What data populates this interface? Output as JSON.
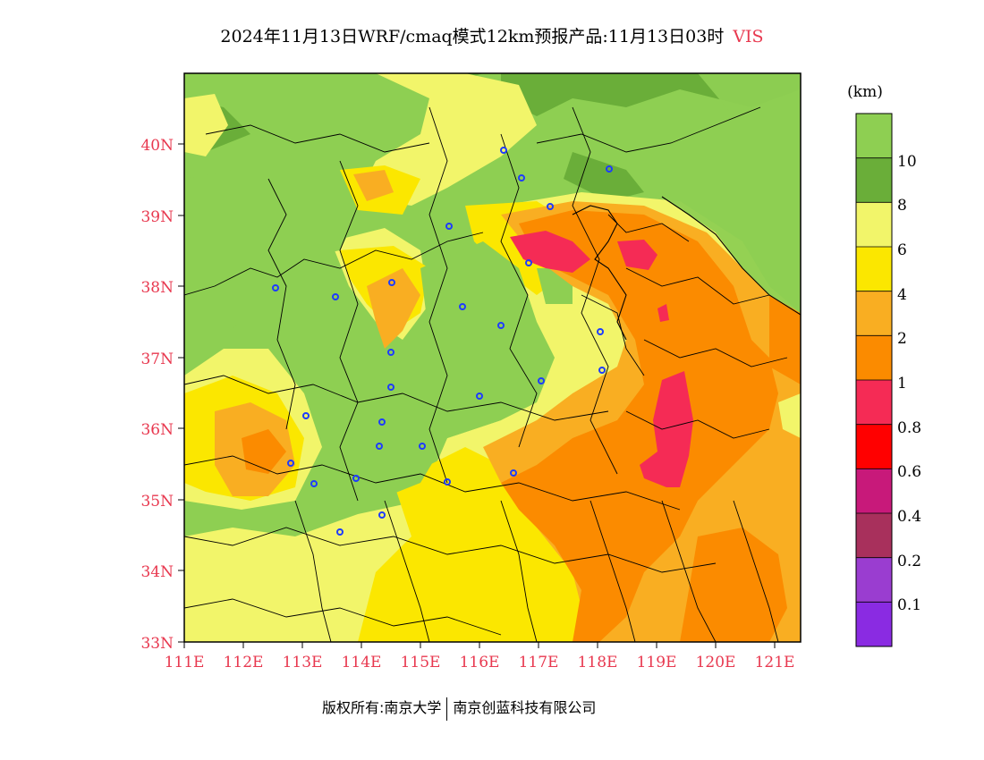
{
  "title": {
    "main": "2024年11月13日WRF/cmaq模式12km预报产品:11月13日03时",
    "variable": "VIS"
  },
  "map": {
    "lat_labels": [
      "33N",
      "34N",
      "35N",
      "36N",
      "37N",
      "38N",
      "39N",
      "40N"
    ],
    "lon_labels": [
      "111E",
      "112E",
      "113E",
      "114E",
      "115E",
      "116E",
      "117E",
      "118E",
      "119E",
      "120E",
      "121E"
    ],
    "extent": {
      "lon": [
        111,
        121.5
      ],
      "lat": [
        33,
        41
      ]
    },
    "fill_colors": {
      "gt10": "#8ecf52",
      "8_10": "#6aae39",
      "6_8": "#f2f56a",
      "4_6": "#fbe700",
      "2_4": "#f9ae22",
      "1_2": "#fb8b00",
      "0.8_1": "#f52b55"
    },
    "border_color": "#000000",
    "city_marker_color": "#1e3cff"
  },
  "colorbar": {
    "unit": "(km)",
    "tick_labels": [
      "10",
      "8",
      "6",
      "4",
      "2",
      "1",
      "0.8",
      "0.6",
      "0.4",
      "0.2",
      "0.1"
    ],
    "colors": [
      "#8ecf52",
      "#6aae39",
      "#f2f56a",
      "#fbe700",
      "#f9ae22",
      "#fb8b00",
      "#f52b55",
      "#ff0000",
      "#c8197a",
      "#a8305c",
      "#9a3dd0",
      "#8a2be2"
    ]
  },
  "footer": {
    "copyright": "版权所有:南京大学",
    "company": "南京创蓝科技有限公司"
  }
}
